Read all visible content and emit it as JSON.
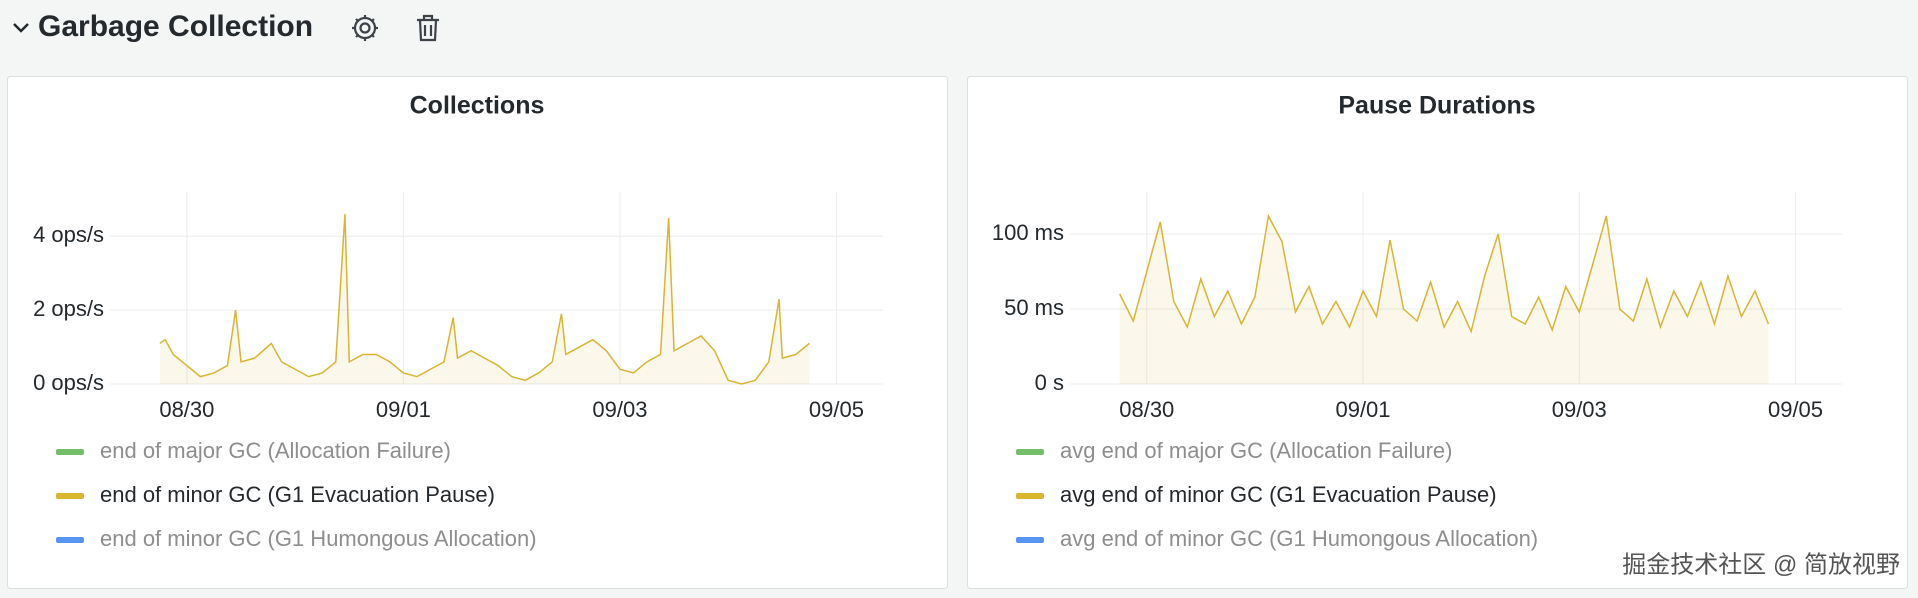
{
  "header": {
    "title": "Garbage Collection"
  },
  "watermark": "掘金技术社区 @ 简放视野",
  "chart_data": [
    {
      "type": "line",
      "title": "Collections",
      "x": [
        -0.25,
        -0.2,
        -0.125,
        0,
        0.125,
        0.25,
        0.375,
        0.45,
        0.5,
        0.625,
        0.78,
        0.875,
        1,
        1.125,
        1.25,
        1.375,
        1.46,
        1.5,
        1.625,
        1.75,
        1.875,
        2,
        2.125,
        2.25,
        2.375,
        2.46,
        2.5,
        2.625,
        2.75,
        2.875,
        3,
        3.125,
        3.25,
        3.375,
        3.46,
        3.5,
        3.625,
        3.75,
        3.875,
        4,
        4.125,
        4.25,
        4.375,
        4.45,
        4.5,
        4.625,
        4.75,
        4.875,
        5,
        5.125,
        5.25,
        5.375,
        5.47,
        5.5,
        5.625,
        5.75
      ],
      "series": [
        {
          "name": "end of major GC (Allocation Failure)",
          "color": "#73bf69",
          "visible": false,
          "values": [
            null,
            null,
            null,
            null,
            null,
            null,
            null,
            null,
            null,
            null,
            null,
            null,
            null,
            null,
            null,
            null,
            null,
            null,
            null,
            null,
            null,
            null,
            null,
            null,
            null,
            null,
            null,
            null,
            null,
            null,
            null,
            null,
            null,
            null,
            null,
            null,
            null,
            null,
            null,
            null,
            null,
            null,
            null,
            null,
            null,
            null,
            null,
            null,
            null,
            null,
            null,
            null,
            null,
            null,
            null,
            null
          ]
        },
        {
          "name": "end of minor GC (G1 Evacuation Pause)",
          "color": "#d9b530",
          "visible": true,
          "values": [
            1.1,
            1.2,
            0.8,
            0.5,
            0.2,
            0.3,
            0.5,
            2.0,
            0.6,
            0.7,
            1.1,
            0.6,
            0.4,
            0.2,
            0.3,
            0.6,
            4.6,
            0.6,
            0.8,
            0.8,
            0.6,
            0.3,
            0.2,
            0.4,
            0.6,
            1.8,
            0.7,
            0.9,
            0.7,
            0.5,
            0.2,
            0.1,
            0.3,
            0.6,
            1.9,
            0.8,
            1.0,
            1.2,
            0.9,
            0.4,
            0.3,
            0.6,
            0.8,
            4.5,
            0.9,
            1.1,
            1.3,
            0.9,
            0.1,
            0.0,
            0.1,
            0.6,
            2.3,
            0.7,
            0.8,
            1.1
          ]
        },
        {
          "name": "end of minor GC (G1 Humongous Allocation)",
          "color": "#5794f2",
          "visible": false,
          "values": [
            null,
            null,
            null,
            null,
            null,
            null,
            null,
            null,
            null,
            null,
            null,
            null,
            null,
            null,
            null,
            null,
            null,
            null,
            null,
            null,
            null,
            null,
            null,
            null,
            null,
            null,
            null,
            null,
            null,
            null,
            null,
            null,
            null,
            null,
            null,
            null,
            null,
            null,
            null,
            null,
            null,
            null,
            null,
            null,
            null,
            null,
            null,
            null,
            null,
            null,
            null,
            null,
            null,
            null,
            null,
            null
          ]
        }
      ],
      "xlim": [
        -0.71,
        6.43
      ],
      "xticks": [
        {
          "value": 0,
          "label": "08/30"
        },
        {
          "value": 2,
          "label": "09/01"
        },
        {
          "value": 4,
          "label": "09/03"
        },
        {
          "value": 6,
          "label": "09/05"
        }
      ],
      "ylim": [
        0,
        5.2
      ],
      "yticks": [
        {
          "value": 0,
          "label": "0 ops/s"
        },
        {
          "value": 2,
          "label": "2 ops/s"
        },
        {
          "value": 4,
          "label": "4 ops/s"
        }
      ],
      "grid": true
    },
    {
      "type": "line",
      "title": "Pause Durations",
      "x": [
        -0.25,
        -0.125,
        0,
        0.125,
        0.25,
        0.375,
        0.5,
        0.625,
        0.75,
        0.875,
        1,
        1.125,
        1.25,
        1.375,
        1.5,
        1.625,
        1.75,
        1.875,
        2,
        2.125,
        2.25,
        2.375,
        2.5,
        2.625,
        2.75,
        2.875,
        3,
        3.125,
        3.25,
        3.375,
        3.5,
        3.625,
        3.75,
        3.875,
        4,
        4.125,
        4.25,
        4.375,
        4.5,
        4.625,
        4.75,
        4.875,
        5,
        5.125,
        5.25,
        5.375,
        5.5,
        5.625,
        5.75
      ],
      "series": [
        {
          "name": "avg end of major GC (Allocation Failure)",
          "color": "#73bf69",
          "visible": false,
          "values": [
            null,
            null,
            null,
            null,
            null,
            null,
            null,
            null,
            null,
            null,
            null,
            null,
            null,
            null,
            null,
            null,
            null,
            null,
            null,
            null,
            null,
            null,
            null,
            null,
            null,
            null,
            null,
            null,
            null,
            null,
            null,
            null,
            null,
            null,
            null,
            null,
            null,
            null,
            null,
            null,
            null,
            null,
            null,
            null,
            null,
            null,
            null,
            null,
            null
          ]
        },
        {
          "name": "avg end of minor GC (G1 Evacuation Pause)",
          "color": "#d9b530",
          "visible": true,
          "values": [
            60,
            42,
            75,
            108,
            55,
            38,
            70,
            45,
            62,
            40,
            58,
            112,
            95,
            48,
            65,
            40,
            55,
            38,
            62,
            45,
            96,
            50,
            42,
            68,
            38,
            55,
            35,
            72,
            100,
            45,
            40,
            58,
            36,
            65,
            48,
            80,
            112,
            50,
            42,
            70,
            38,
            62,
            45,
            68,
            40,
            72,
            45,
            62,
            40
          ]
        },
        {
          "name": "avg end of minor GC (G1 Humongous Allocation)",
          "color": "#5794f2",
          "visible": false,
          "values": [
            null,
            null,
            null,
            null,
            null,
            null,
            null,
            null,
            null,
            null,
            null,
            null,
            null,
            null,
            null,
            null,
            null,
            null,
            null,
            null,
            null,
            null,
            null,
            null,
            null,
            null,
            null,
            null,
            null,
            null,
            null,
            null,
            null,
            null,
            null,
            null,
            null,
            null,
            null,
            null,
            null,
            null,
            null,
            null,
            null,
            null,
            null,
            null,
            null
          ]
        }
      ],
      "xlim": [
        -0.71,
        6.43
      ],
      "xticks": [
        {
          "value": 0,
          "label": "08/30"
        },
        {
          "value": 2,
          "label": "09/01"
        },
        {
          "value": 4,
          "label": "09/03"
        },
        {
          "value": 6,
          "label": "09/05"
        }
      ],
      "ylim": [
        0,
        128
      ],
      "yticks": [
        {
          "value": 0,
          "label": "0 s"
        },
        {
          "value": 50,
          "label": "50 ms"
        },
        {
          "value": 100,
          "label": "100 ms"
        }
      ],
      "grid": true
    }
  ]
}
